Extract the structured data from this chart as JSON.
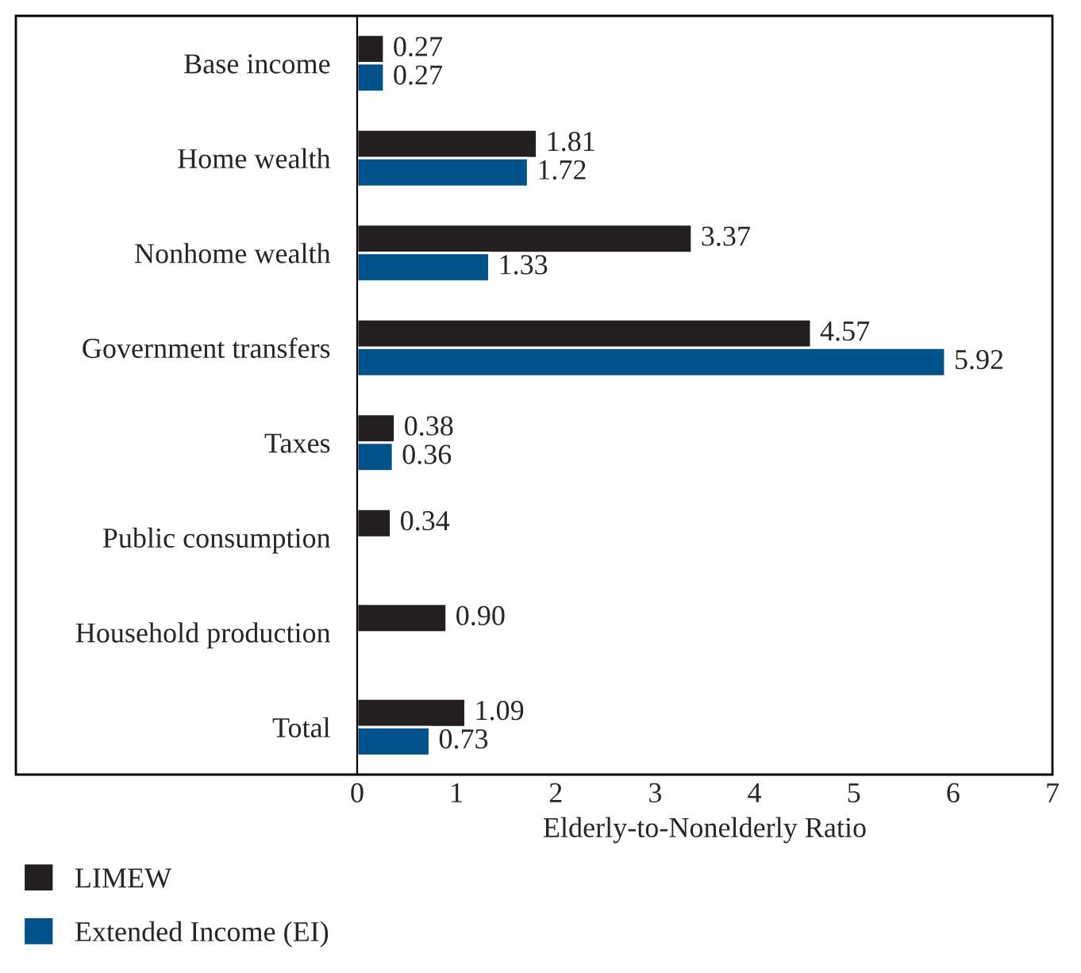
{
  "chart_data": {
    "type": "bar",
    "orientation": "horizontal",
    "categories": [
      "Base income",
      "Home wealth",
      "Nonhome wealth",
      "Government transfers",
      "Taxes",
      "Public consumption",
      "Household production",
      "Total"
    ],
    "series": [
      {
        "name": "LIMEW",
        "color": "#231f20",
        "values": [
          0.27,
          1.81,
          3.37,
          4.57,
          0.38,
          0.34,
          0.9,
          1.09
        ],
        "value_labels": [
          "0.27",
          "1.81",
          "3.37",
          "4.57",
          "0.38",
          "0.34",
          "0.90",
          "1.09"
        ]
      },
      {
        "name": "Extended Income (EI)",
        "color": "#00538a",
        "values": [
          0.27,
          1.72,
          1.33,
          5.92,
          0.36,
          null,
          null,
          0.73
        ],
        "value_labels": [
          "0.27",
          "1.72",
          "1.33",
          "5.92",
          "0.36",
          null,
          null,
          "0.73"
        ]
      }
    ],
    "xlabel": "Elderly-to-Nonelderly Ratio",
    "xlim": [
      0,
      7
    ],
    "xticks": [
      0,
      1,
      2,
      3,
      4,
      5,
      6,
      7
    ],
    "grid": false,
    "legend": "bottom"
  }
}
